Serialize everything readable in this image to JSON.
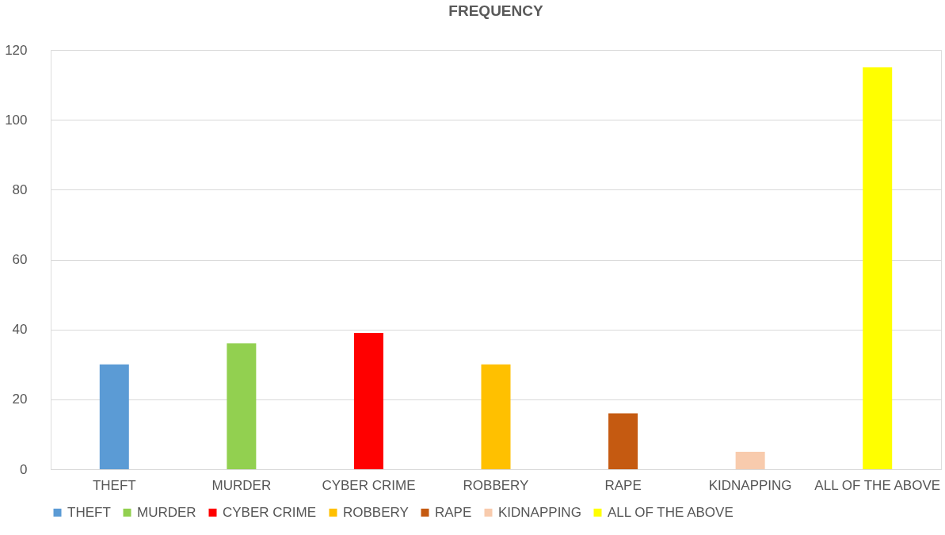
{
  "chart_data": {
    "type": "bar",
    "title": "FREQUENCY",
    "categories": [
      "THEFT",
      "MURDER",
      "CYBER CRIME",
      "ROBBERY",
      "RAPE",
      "KIDNAPPING",
      "ALL OF THE ABOVE"
    ],
    "series": [
      {
        "name": "THEFT",
        "color": "#5b9bd5",
        "values": [
          30,
          null,
          null,
          null,
          null,
          null,
          null
        ]
      },
      {
        "name": "MURDER",
        "color": "#92d050",
        "values": [
          null,
          36,
          null,
          null,
          null,
          null,
          null
        ]
      },
      {
        "name": "CYBER CRIME",
        "color": "#ff0000",
        "values": [
          null,
          null,
          39,
          null,
          null,
          null,
          null
        ]
      },
      {
        "name": "ROBBERY",
        "color": "#ffc000",
        "values": [
          null,
          null,
          null,
          30,
          null,
          null,
          null
        ]
      },
      {
        "name": "RAPE",
        "color": "#c55a11",
        "values": [
          null,
          null,
          null,
          null,
          16,
          null,
          null
        ]
      },
      {
        "name": "KIDNAPPING",
        "color": "#f8cbad",
        "values": [
          null,
          null,
          null,
          null,
          null,
          5,
          null
        ]
      },
      {
        "name": "ALL OF THE ABOVE",
        "color": "#ffff00",
        "values": [
          null,
          null,
          null,
          null,
          null,
          null,
          115
        ]
      }
    ],
    "ylim": [
      0,
      120
    ],
    "yticks": [
      0,
      20,
      40,
      60,
      80,
      100,
      120
    ],
    "grid": "y",
    "legend": "bottom"
  }
}
